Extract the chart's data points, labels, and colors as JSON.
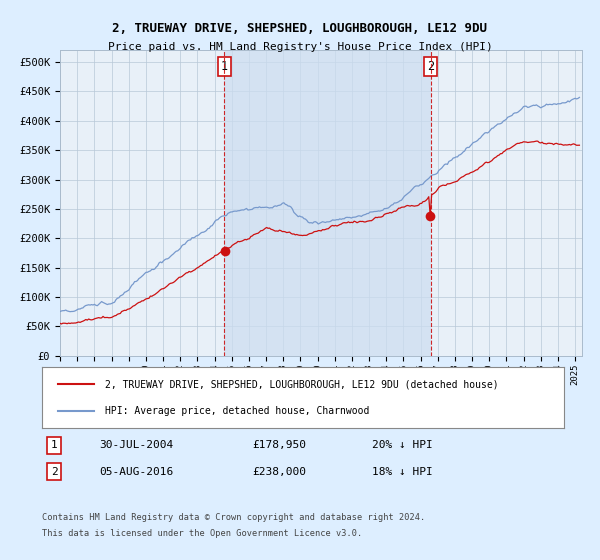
{
  "title": "2, TRUEWAY DRIVE, SHEPSHED, LOUGHBOROUGH, LE12 9DU",
  "subtitle": "Price paid vs. HM Land Registry's House Price Index (HPI)",
  "xlim_start": 1995.0,
  "xlim_end": 2025.4,
  "ylim_min": 0,
  "ylim_max": 520000,
  "yticks": [
    0,
    50000,
    100000,
    150000,
    200000,
    250000,
    300000,
    350000,
    400000,
    450000,
    500000
  ],
  "ytick_labels": [
    "£0",
    "£50K",
    "£100K",
    "£150K",
    "£200K",
    "£250K",
    "£300K",
    "£350K",
    "£400K",
    "£450K",
    "£500K"
  ],
  "hpi_color": "#7799cc",
  "price_color": "#cc1111",
  "vline1_x": 2004.57,
  "vline2_x": 2016.59,
  "sale1_y": 178950,
  "sale2_y": 238000,
  "sale1_label": "1",
  "sale1_date": "30-JUL-2004",
  "sale1_price": "£178,950",
  "sale1_note": "20% ↓ HPI",
  "sale2_label": "2",
  "sale2_date": "05-AUG-2016",
  "sale2_price": "£238,000",
  "sale2_note": "18% ↓ HPI",
  "legend1": "2, TRUEWAY DRIVE, SHEPSHED, LOUGHBOROUGH, LE12 9DU (detached house)",
  "legend2": "HPI: Average price, detached house, Charnwood",
  "footer1": "Contains HM Land Registry data © Crown copyright and database right 2024.",
  "footer2": "This data is licensed under the Open Government Licence v3.0.",
  "background_color": "#ddeeff",
  "plot_bg_color": "#e8f0f8",
  "shade_color": "#ccddf0"
}
